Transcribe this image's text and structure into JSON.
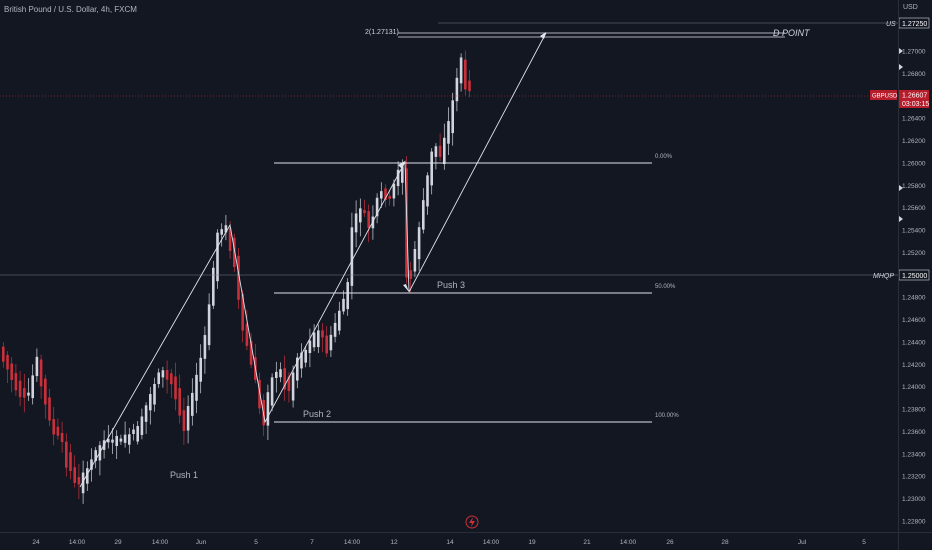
{
  "header": {
    "title": "British Pound / U.S. Dollar, 4h, FXCM"
  },
  "currency_label": "USD",
  "price_labels": [
    "1.27000",
    "1.26800",
    "1.26600",
    "1.26400",
    "1.26200",
    "1.26000",
    "1.25800",
    "1.25600",
    "1.25400",
    "1.25200",
    "1.25000",
    "1.24800",
    "1.24600",
    "1.24400",
    "1.24200",
    "1.24000",
    "1.23800",
    "1.23600",
    "1.23400",
    "1.23200",
    "1.23000",
    "1.22800"
  ],
  "date_labels": [
    "24",
    "14:00",
    "29",
    "14:00",
    "Jun",
    "5",
    "7",
    "14:00",
    "12",
    "14",
    "14:00",
    "19",
    "21",
    "14:00",
    "26",
    "28",
    "Jul",
    "5"
  ],
  "badges": {
    "us": {
      "name": "US",
      "price": "1.27250"
    },
    "gbpusd": {
      "symbol": "GBPUSD",
      "price": "1.26607",
      "countdown": "03:03:15"
    },
    "mhqp": {
      "name": "MHQP",
      "price": "1.25000"
    }
  },
  "annotations": {
    "point_label": "2(1.27131)",
    "d_point": "D POINT",
    "fib0": "0.00%",
    "fib50": "50.00%",
    "fib100": "100.00%",
    "push1": "Push 1",
    "push2": "Push 2",
    "push3": "Push 3"
  },
  "colors": {
    "background": "#131722",
    "bull": "#d1d4dc",
    "bear": "#c9303b",
    "grid": "#1e222d",
    "text": "#b2b5be",
    "badge_red": "#b71c2b",
    "white": "#ffffff"
  },
  "icons": {
    "lightning": "lightning-icon"
  }
}
